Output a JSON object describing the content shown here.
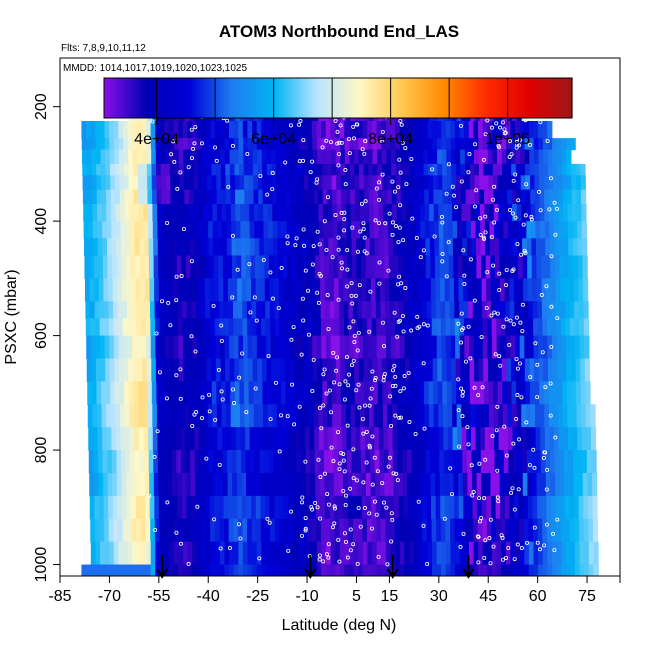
{
  "chart_data": {
    "type": "heatmap",
    "title": "ATOM3 Northbound End_LAS",
    "flights_label": "Flts: 7,8,9,10,11,12",
    "dates_label": "MMDD: 1014,1017,1019,1020,1023,1025",
    "xlabel": "Latitude (deg N)",
    "ylabel": "PSXC (mbar)",
    "xlim": [
      -85,
      85
    ],
    "ylim": [
      1020,
      115
    ],
    "x_ticks": [
      -85,
      -70,
      -55,
      -40,
      -25,
      -10,
      5,
      15,
      30,
      45,
      60,
      75
    ],
    "x_tick_labels": [
      "-85",
      "-70",
      "-55",
      "-40",
      "-25",
      "-10",
      "5",
      "15",
      "30",
      "45",
      "60",
      "75"
    ],
    "y_ticks": [
      200,
      400,
      600,
      800,
      1000
    ],
    "y_tick_labels": [
      "200",
      "400",
      "600",
      "800",
      "1000"
    ],
    "colorbar": {
      "min": 31000,
      "max": 111000,
      "ticks": [
        40000,
        60000,
        80000,
        100000
      ],
      "tick_labels": [
        "4e+04",
        "6e+04",
        "8e+04",
        "1e+05"
      ],
      "dividers": [
        50000,
        70000,
        90000
      ],
      "colors": [
        "#8a10e8",
        "#0000b4",
        "#0000d8",
        "#1e7cf0",
        "#00b4f4",
        "#b8e4ff",
        "#fff8c8",
        "#ffc850",
        "#ff8a00",
        "#ff2a00",
        "#e00000",
        "#9c1818"
      ]
    },
    "profile_x": [
      -76,
      -69,
      -62,
      -58.5,
      -55,
      -51,
      -47,
      -43,
      -39,
      -35,
      -31,
      -27,
      -23,
      -19,
      -15,
      -11,
      -8,
      -5,
      -2,
      1,
      4,
      7,
      10,
      13,
      16,
      19,
      22,
      25,
      28,
      31,
      34,
      37,
      40,
      43,
      46,
      49,
      52,
      55,
      58,
      61,
      64,
      67,
      70,
      73,
      76,
      79
    ],
    "profile_values": [
      58000,
      66000,
      76000,
      76000,
      41000,
      38000,
      37000,
      40000,
      45000,
      46000,
      50000,
      48000,
      46000,
      44000,
      42000,
      40000,
      39000,
      34000,
      33500,
      35000,
      36000,
      35500,
      34500,
      35000,
      36500,
      38000,
      40000,
      44000,
      47000,
      50000,
      48000,
      42000,
      37000,
      35000,
      35500,
      37000,
      41000,
      44000,
      47000,
      50000,
      53000,
      56000,
      59000,
      62000,
      65000,
      67000
    ],
    "row_boundaries": [
      170,
      225,
      255,
      275,
      300,
      320,
      345,
      370,
      400,
      430,
      460,
      500,
      540,
      570,
      600,
      640,
      680,
      720,
      760,
      800,
      840,
      880,
      920,
      960,
      1000,
      1020
    ],
    "arrow_latitudes": [
      -54,
      -9,
      16,
      39
    ]
  }
}
